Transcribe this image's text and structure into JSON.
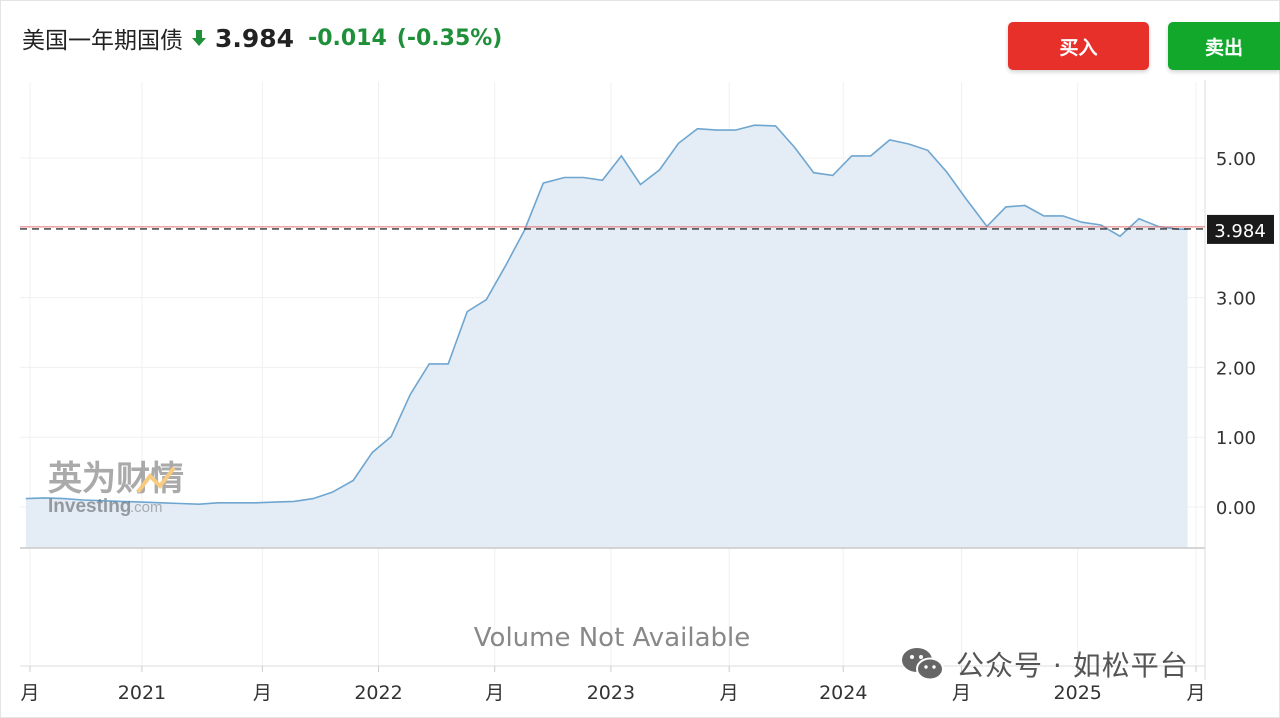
{
  "header": {
    "title": "美国一年期国债",
    "price": "3.984",
    "change": "-0.014",
    "change_pct": "(-0.35%)",
    "direction_icon": "arrow-down-icon",
    "change_color": "#1f8f3a"
  },
  "buttons": {
    "buy_label": "买入",
    "sell_label": "卖出",
    "buy_color": "#e8302a",
    "sell_color": "#11a82c"
  },
  "brand_logo": {
    "cn": "英为财情",
    "en": "Investing",
    "en_suffix": ".com"
  },
  "volume_panel": {
    "text": "Volume Not Available"
  },
  "watermark": {
    "icon": "wechat-icon",
    "text": "公众号 · 如松平台"
  },
  "chart_data": {
    "type": "area",
    "title": "",
    "xlabel": "",
    "ylabel": "",
    "current_value": 3.984,
    "current_value_label": "3.984",
    "ylim": [
      -0.58,
      6.3
    ],
    "yticks": [
      0,
      1,
      2,
      3,
      5
    ],
    "ytick_labels": [
      "0.00",
      "1.00",
      "2.00",
      "3.00",
      "5.00"
    ],
    "xlim": [
      2020.01,
      2025.54
    ],
    "xticks": [
      {
        "x": 2020.02,
        "label": "月"
      },
      {
        "x": 2020.55,
        "label": "2021"
      },
      {
        "x": 2021.12,
        "label": "月"
      },
      {
        "x": 2021.67,
        "label": "2022"
      },
      {
        "x": 2022.22,
        "label": "月"
      },
      {
        "x": 2022.77,
        "label": "2023"
      },
      {
        "x": 2023.33,
        "label": "月"
      },
      {
        "x": 2023.87,
        "label": "2024"
      },
      {
        "x": 2024.43,
        "label": "月"
      },
      {
        "x": 2024.98,
        "label": "2025"
      },
      {
        "x": 2025.54,
        "label": "月"
      }
    ],
    "grid": true,
    "line_color": "#6fa6d0",
    "fill_color": "#e4edf6",
    "series": [
      {
        "name": "",
        "x": [
          2020.0,
          2020.09,
          2020.18,
          2020.27,
          2020.36,
          2020.45,
          2020.55,
          2020.64,
          2020.73,
          2020.82,
          2020.91,
          2021.0,
          2021.09,
          2021.18,
          2021.27,
          2021.36,
          2021.45,
          2021.55,
          2021.64,
          2021.73,
          2021.82,
          2021.91,
          2022.0,
          2022.09,
          2022.18,
          2022.27,
          2022.36,
          2022.45,
          2022.55,
          2022.64,
          2022.73,
          2022.82,
          2022.91,
          2023.0,
          2023.09,
          2023.18,
          2023.27,
          2023.36,
          2023.45,
          2023.55,
          2023.64,
          2023.73,
          2023.82,
          2023.91,
          2024.0,
          2024.09,
          2024.18,
          2024.27,
          2024.36,
          2024.45,
          2024.55,
          2024.64,
          2024.73,
          2024.82,
          2024.91,
          2025.0,
          2025.09,
          2025.18,
          2025.27,
          2025.36,
          2025.45,
          2025.5
        ],
        "y": [
          0.12,
          0.13,
          0.12,
          0.1,
          0.09,
          0.08,
          0.07,
          0.06,
          0.05,
          0.04,
          0.06,
          0.06,
          0.06,
          0.07,
          0.08,
          0.12,
          0.21,
          0.38,
          0.78,
          1.01,
          1.61,
          2.05,
          2.05,
          2.8,
          2.97,
          3.45,
          3.96,
          4.64,
          4.72,
          4.72,
          4.68,
          5.03,
          4.62,
          4.83,
          5.21,
          5.42,
          5.4,
          5.4,
          5.47,
          5.46,
          5.15,
          4.79,
          4.75,
          5.03,
          5.03,
          5.26,
          5.2,
          5.11,
          4.8,
          4.42,
          4.02,
          4.3,
          4.32,
          4.17,
          4.17,
          4.08,
          4.04,
          3.88,
          4.13,
          4.02,
          3.98,
          3.98
        ]
      }
    ]
  }
}
